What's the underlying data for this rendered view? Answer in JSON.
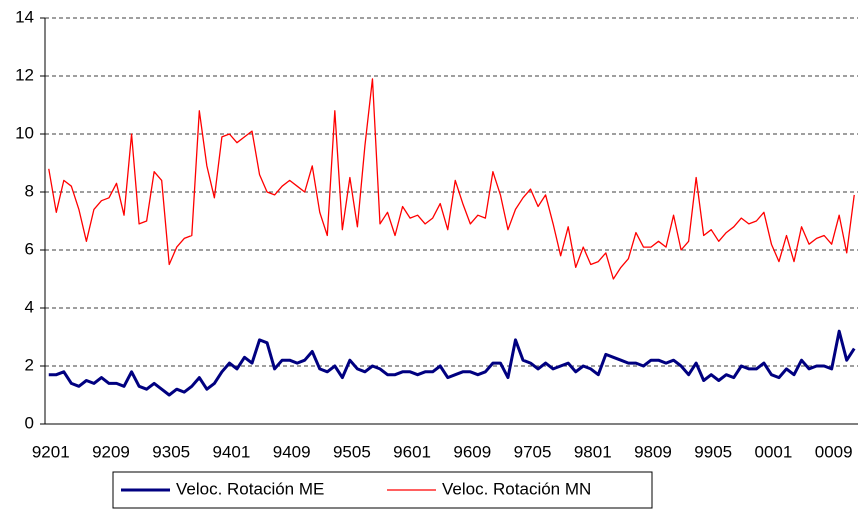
{
  "chart_data": {
    "type": "line",
    "categories": [
      "9201",
      null,
      null,
      null,
      null,
      null,
      null,
      null,
      "9209",
      null,
      null,
      null,
      null,
      null,
      null,
      null,
      "9305",
      null,
      null,
      null,
      null,
      null,
      null,
      null,
      "9401",
      null,
      null,
      null,
      null,
      null,
      null,
      null,
      "9409",
      null,
      null,
      null,
      null,
      null,
      null,
      null,
      "9505",
      null,
      null,
      null,
      null,
      null,
      null,
      null,
      "9601",
      null,
      null,
      null,
      null,
      null,
      null,
      null,
      "9609",
      null,
      null,
      null,
      null,
      null,
      null,
      null,
      "9705",
      null,
      null,
      null,
      null,
      null,
      null,
      null,
      "9801",
      null,
      null,
      null,
      null,
      null,
      null,
      null,
      "9809",
      null,
      null,
      null,
      null,
      null,
      null,
      null,
      "9905",
      null,
      null,
      null,
      null,
      null,
      null,
      null,
      "0001",
      null,
      null,
      null,
      null,
      null,
      null,
      null,
      "0009",
      null,
      null,
      null
    ],
    "series": [
      {
        "name": "Veloc. Rotación ME",
        "color": "#000080",
        "width": 3,
        "values": [
          1.7,
          1.7,
          1.8,
          1.4,
          1.3,
          1.5,
          1.4,
          1.6,
          1.4,
          1.4,
          1.3,
          1.8,
          1.3,
          1.2,
          1.4,
          1.2,
          1.0,
          1.2,
          1.1,
          1.3,
          1.6,
          1.2,
          1.4,
          1.8,
          2.1,
          1.9,
          2.3,
          2.1,
          2.9,
          2.8,
          1.9,
          2.2,
          2.2,
          2.1,
          2.2,
          2.5,
          1.9,
          1.8,
          2.0,
          1.6,
          2.2,
          1.9,
          1.8,
          2.0,
          1.9,
          1.7,
          1.7,
          1.8,
          1.8,
          1.7,
          1.8,
          1.8,
          2.0,
          1.6,
          1.7,
          1.8,
          1.8,
          1.7,
          1.8,
          2.1,
          2.1,
          1.6,
          2.9,
          2.2,
          2.1,
          1.9,
          2.1,
          1.9,
          2.0,
          2.1,
          1.8,
          2.0,
          1.9,
          1.7,
          2.4,
          2.3,
          2.2,
          2.1,
          2.1,
          2.0,
          2.2,
          2.2,
          2.1,
          2.2,
          2.0,
          1.7,
          2.1,
          1.5,
          1.7,
          1.5,
          1.7,
          1.6,
          2.0,
          1.9,
          1.9,
          2.1,
          1.7,
          1.6,
          1.9,
          1.7,
          2.2,
          1.9,
          2.0,
          2.0,
          1.9,
          3.2,
          2.2,
          2.6
        ]
      },
      {
        "name": "Veloc. Rotación MN",
        "color": "#ff0000",
        "width": 1.3,
        "values": [
          8.8,
          7.3,
          8.4,
          8.2,
          7.4,
          6.3,
          7.4,
          7.7,
          7.8,
          8.3,
          7.2,
          10.0,
          6.9,
          7.0,
          8.7,
          8.4,
          5.5,
          6.1,
          6.4,
          6.5,
          10.8,
          8.9,
          7.8,
          9.9,
          10.0,
          9.7,
          9.9,
          10.1,
          8.6,
          8.0,
          7.9,
          8.2,
          8.4,
          8.2,
          8.0,
          8.9,
          7.3,
          6.5,
          10.8,
          6.7,
          8.5,
          6.8,
          9.6,
          11.9,
          6.9,
          7.3,
          6.5,
          7.5,
          7.1,
          7.2,
          6.9,
          7.1,
          7.6,
          6.7,
          8.4,
          7.6,
          6.9,
          7.2,
          7.1,
          8.7,
          7.9,
          6.7,
          7.4,
          7.8,
          8.1,
          7.5,
          7.9,
          6.9,
          5.8,
          6.8,
          5.4,
          6.1,
          5.5,
          5.6,
          5.9,
          5.0,
          5.4,
          5.7,
          6.6,
          6.1,
          6.1,
          6.3,
          6.1,
          7.2,
          6.0,
          6.3,
          8.5,
          6.5,
          6.7,
          6.3,
          6.6,
          6.8,
          7.1,
          6.9,
          7.0,
          7.3,
          6.2,
          5.6,
          6.5,
          5.6,
          6.8,
          6.2,
          6.4,
          6.5,
          6.2,
          7.2,
          5.9,
          7.9
        ]
      }
    ],
    "ylim": [
      0,
      14
    ],
    "yticks": [
      0,
      2,
      4,
      6,
      8,
      10,
      12,
      14
    ],
    "grid": true
  }
}
